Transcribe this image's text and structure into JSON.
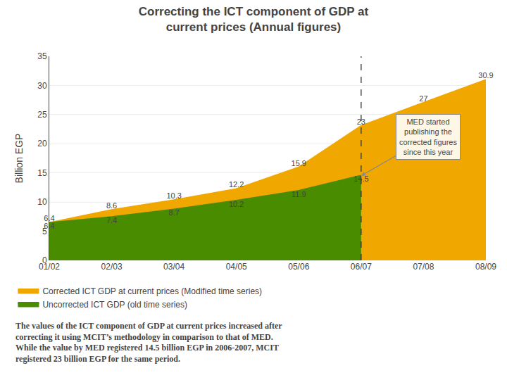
{
  "chart_data": {
    "type": "area",
    "title": "Correcting the ICT component of GDP at\ncurrent prices (Annual figures)",
    "y_label": "Billion EGP",
    "categories": [
      "01/02",
      "02/03",
      "03/04",
      "04/05",
      "05/06",
      "06/07",
      "07/08",
      "08/09"
    ],
    "series": [
      {
        "name": "Corrected ICT GDP at current prices (Modified time series)",
        "color": "#F0A800",
        "values": [
          6.4,
          8.6,
          10.3,
          12.2,
          15.9,
          23,
          27,
          30.9
        ]
      },
      {
        "name": "Uncorrected ICT GDP (old time series)",
        "color": "#4A8C00",
        "values": [
          6.4,
          7.4,
          8.7,
          10.2,
          11.9,
          14.5,
          null,
          null
        ]
      }
    ],
    "ylim": [
      0,
      35
    ],
    "yticks": [
      0,
      5,
      10,
      15,
      20,
      25,
      30,
      35
    ],
    "grid": true,
    "legend": "bottom",
    "data_labels": true,
    "annotations": [
      {
        "text": "MED started\npublishing the\ncorrected figures\nsince this year",
        "x": "06/07",
        "y": 14.5
      }
    ],
    "footnote": [
      "The values of the ICT component of GDP at current prices increased after",
      "correcting it using MCIT’s methodology in comparison to that of MED.",
      "While the value by MED registered 14.5 billion EGP in 2006-2007, MCIT",
      "registered 23 billion EGP for the same period."
    ]
  }
}
